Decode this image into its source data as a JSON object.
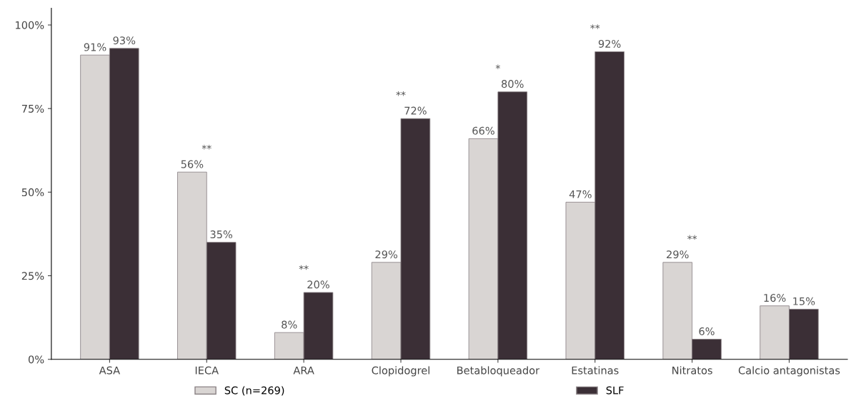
{
  "chart_data": {
    "type": "bar",
    "categories": [
      "ASA",
      "IECA",
      "ARA",
      "Clopidogrel",
      "Betabloqueador",
      "Estatinas",
      "Nitratos",
      "Calcio antagonistas"
    ],
    "series": [
      {
        "name": "SC (n=269)",
        "color": "#d9d5d3",
        "values": [
          91,
          56,
          8,
          29,
          66,
          47,
          29,
          16
        ],
        "value_labels": [
          "91%",
          "56%",
          "8%",
          "29%",
          "66%",
          "47%",
          "29%",
          "16%"
        ]
      },
      {
        "name": "SLF",
        "color": "#3b2f36",
        "values": [
          93,
          35,
          20,
          72,
          80,
          92,
          6,
          15
        ],
        "value_labels": [
          "93%",
          "35%",
          "20%",
          "72%",
          "80%",
          "92%",
          "6%",
          "15%"
        ]
      }
    ],
    "ylim": [
      0,
      105
    ],
    "yticks": [
      {
        "value": 0,
        "label": "0%"
      },
      {
        "value": 25,
        "label": "25%"
      },
      {
        "value": 50,
        "label": "50%"
      },
      {
        "value": 75,
        "label": "75%"
      },
      {
        "value": 100,
        "label": "100%"
      }
    ],
    "grid": false,
    "legend": "bottom",
    "annotations": [
      {
        "text": "**",
        "x": "IECA",
        "y": 56
      },
      {
        "text": "**",
        "x": "ARA",
        "y": 20
      },
      {
        "text": "**",
        "x": "Clopidogrel",
        "y": 72
      },
      {
        "text": "*",
        "x": "Betabloqueador",
        "y": 80
      },
      {
        "text": "**",
        "x": "Estatinas",
        "y": 92
      },
      {
        "text": "**",
        "x": "Nitratos",
        "y": 29
      }
    ]
  }
}
